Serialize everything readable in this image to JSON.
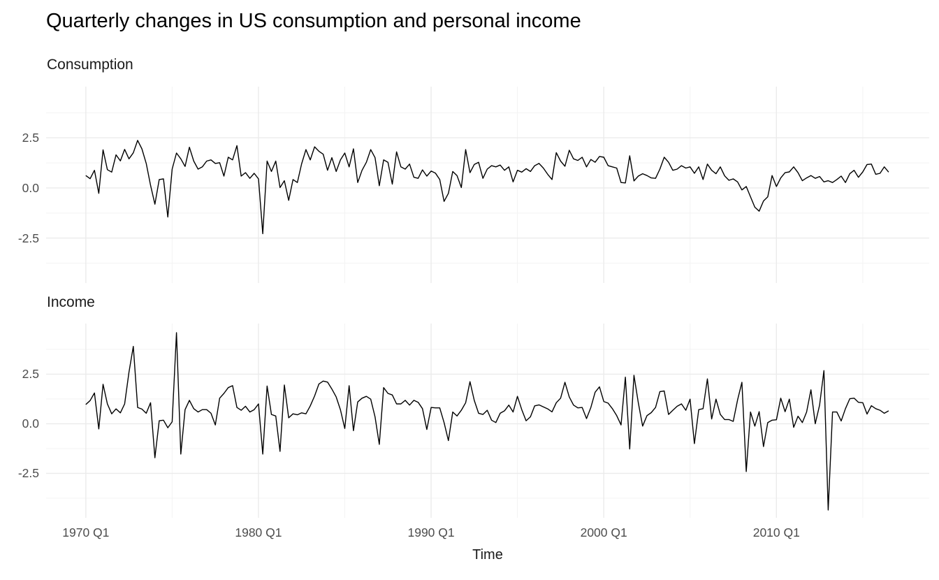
{
  "colors": {
    "background": "#FFFFFF",
    "series_line": "#000000",
    "grid_major": "#EBEBEB",
    "grid_minor": "#F3F3F3",
    "tick_label": "#4D4D4D",
    "title": "#000000"
  },
  "chart_data": {
    "type": "line",
    "title": "Quarterly changes in US consumption and personal income",
    "xlabel": "Time",
    "x_start": "1970 Q1",
    "x_end": "2016 Q3",
    "frequency": "quarterly",
    "xlim": [
      1967.7,
      2018.85
    ],
    "ylim": [
      -4.74,
      5.05
    ],
    "x_major_ticks": [
      1970,
      1980,
      1990,
      2000,
      2010
    ],
    "x_minor_ticks": [
      1975,
      1985,
      1995,
      2005,
      2015
    ],
    "x_tick_labels": [
      "1970 Q1",
      "1980 Q1",
      "1990 Q1",
      "2000 Q1",
      "2010 Q1"
    ],
    "y_major_ticks": [
      2.5,
      0,
      -2.5
    ],
    "y_minor_ticks": [
      3.75,
      1.25,
      -1.25,
      -3.75
    ],
    "y_tick_labels": [
      "2.5",
      "0.0",
      "-2.5"
    ],
    "grid": "major-and-minor",
    "legend": "none",
    "facets": [
      {
        "name": "Consumption",
        "values": [
          0.62,
          0.46,
          0.88,
          -0.27,
          1.9,
          0.91,
          0.79,
          1.65,
          1.35,
          1.92,
          1.45,
          1.75,
          2.37,
          1.95,
          1.22,
          0.13,
          -0.81,
          0.42,
          0.45,
          -1.45,
          0.94,
          1.74,
          1.45,
          1.07,
          2.03,
          1.34,
          0.94,
          1.05,
          1.34,
          1.4,
          1.22,
          1.26,
          0.59,
          1.53,
          1.4,
          2.11,
          0.59,
          0.76,
          0.48,
          0.73,
          0.45,
          -2.28,
          1.34,
          0.82,
          1.34,
          0.02,
          0.36,
          -0.62,
          0.42,
          0.27,
          1.2,
          1.91,
          1.4,
          2.05,
          1.83,
          1.68,
          0.88,
          1.51,
          0.82,
          1.4,
          1.74,
          1.05,
          1.95,
          0.27,
          0.88,
          1.28,
          1.91,
          1.51,
          0.11,
          1.4,
          1.28,
          0.19,
          1.8,
          1.05,
          0.94,
          1.19,
          0.53,
          0.48,
          0.9,
          0.59,
          0.84,
          0.74,
          0.42,
          -0.67,
          -0.27,
          0.82,
          0.62,
          0.02,
          1.91,
          0.76,
          1.17,
          1.28,
          0.48,
          0.94,
          1.11,
          1.05,
          1.14,
          0.88,
          1.05,
          0.3,
          0.88,
          0.79,
          0.96,
          0.82,
          1.11,
          1.22,
          0.99,
          0.68,
          0.42,
          1.76,
          1.34,
          1.08,
          1.88,
          1.45,
          1.37,
          1.53,
          1.05,
          1.42,
          1.28,
          1.57,
          1.53,
          1.11,
          1.05,
          0.99,
          0.27,
          0.25,
          1.6,
          0.35,
          0.59,
          0.71,
          0.62,
          0.5,
          0.48,
          0.94,
          1.53,
          1.28,
          0.88,
          0.94,
          1.11,
          0.99,
          1.05,
          0.73,
          1.05,
          0.42,
          1.19,
          0.88,
          0.71,
          1.05,
          0.6,
          0.38,
          0.45,
          0.3,
          -0.1,
          0.07,
          -0.44,
          -0.96,
          -1.16,
          -0.65,
          -0.44,
          0.62,
          0.07,
          0.5,
          0.76,
          0.8,
          1.05,
          0.76,
          0.36,
          0.5,
          0.62,
          0.48,
          0.57,
          0.3,
          0.36,
          0.27,
          0.42,
          0.59,
          0.27,
          0.71,
          0.88,
          0.53,
          0.8,
          1.17,
          1.19,
          0.68,
          0.73,
          1.05,
          0.79
        ]
      },
      {
        "name": "Income",
        "values": [
          0.97,
          1.17,
          1.55,
          -0.26,
          1.99,
          1.0,
          0.5,
          0.75,
          0.55,
          1.0,
          2.6,
          3.9,
          0.82,
          0.74,
          0.53,
          1.06,
          -1.71,
          0.15,
          0.18,
          -0.2,
          0.1,
          4.59,
          -1.53,
          0.71,
          1.18,
          0.76,
          0.59,
          0.71,
          0.71,
          0.53,
          -0.06,
          1.29,
          1.53,
          1.82,
          1.92,
          0.82,
          0.68,
          0.88,
          0.59,
          0.71,
          1.0,
          -1.53,
          1.9,
          0.47,
          0.39,
          -1.39,
          1.95,
          0.3,
          0.5,
          0.45,
          0.55,
          0.5,
          0.9,
          1.4,
          2.0,
          2.15,
          2.1,
          1.75,
          1.35,
          0.7,
          -0.24,
          1.92,
          -0.35,
          1.1,
          1.29,
          1.38,
          1.24,
          0.35,
          -1.04,
          1.82,
          1.53,
          1.45,
          1.0,
          1.0,
          1.18,
          0.94,
          1.18,
          1.08,
          0.76,
          -0.29,
          0.82,
          0.8,
          0.8,
          0.06,
          -0.85,
          0.59,
          0.39,
          0.68,
          1.06,
          2.12,
          1.18,
          0.53,
          0.47,
          0.68,
          0.18,
          0.06,
          0.53,
          0.65,
          0.94,
          0.59,
          1.38,
          0.71,
          0.15,
          0.35,
          0.9,
          0.95,
          0.85,
          0.75,
          0.6,
          1.06,
          1.29,
          2.09,
          1.35,
          0.94,
          0.8,
          0.82,
          0.26,
          0.82,
          1.59,
          1.86,
          1.12,
          1.04,
          0.76,
          0.41,
          -0.06,
          2.35,
          -1.27,
          2.44,
          1.06,
          -0.12,
          0.41,
          0.56,
          0.82,
          1.62,
          1.65,
          0.47,
          0.68,
          0.88,
          1.0,
          0.68,
          1.24,
          -1.0,
          0.71,
          0.76,
          2.26,
          0.24,
          1.24,
          0.47,
          0.21,
          0.21,
          0.12,
          1.2,
          2.09,
          -2.41,
          0.59,
          -0.12,
          0.61,
          -1.15,
          0.06,
          0.18,
          0.2,
          1.29,
          0.61,
          1.24,
          -0.18,
          0.38,
          0.06,
          0.59,
          1.71,
          0.0,
          0.94,
          2.68,
          -4.35,
          0.59,
          0.59,
          0.14,
          0.76,
          1.26,
          1.29,
          1.08,
          1.06,
          0.49,
          0.91,
          0.76,
          0.68,
          0.53,
          0.65
        ]
      }
    ]
  }
}
